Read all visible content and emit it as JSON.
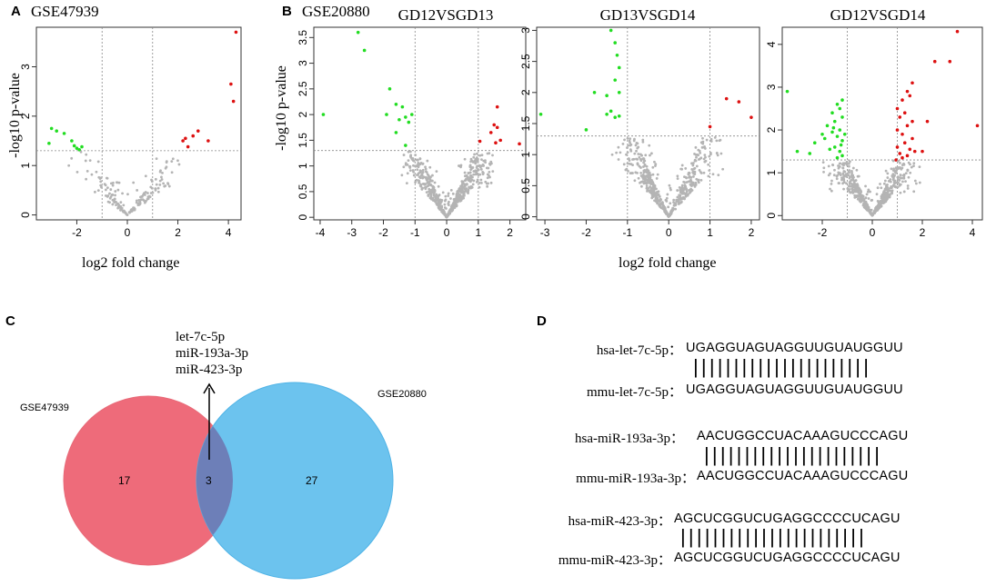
{
  "panels": {
    "A": {
      "letter": "A",
      "title": "GSE47939"
    },
    "B": {
      "letter": "B",
      "title": "GSE20880"
    },
    "C": {
      "letter": "C"
    },
    "D": {
      "letter": "D"
    }
  },
  "axis_labels": {
    "x": "log2 fold change",
    "y": "-log10 p-value"
  },
  "chart_data": [
    {
      "type": "scatter",
      "title": "GSE47939",
      "xlabel": "log2 fold change",
      "ylabel": "-log10 p-value",
      "xlim": [
        -3.6,
        4.5
      ],
      "ylim": [
        -0.1,
        3.8
      ],
      "xticks": [
        -2,
        0,
        2,
        4
      ],
      "yticks": [
        0,
        1,
        2,
        3
      ],
      "vlines": [
        -1,
        1
      ],
      "hline": 1.3,
      "series": [
        {
          "name": "down",
          "color": "#22dd22",
          "points": [
            [
              -3.0,
              1.75
            ],
            [
              -2.8,
              1.7
            ],
            [
              -2.5,
              1.65
            ],
            [
              -2.2,
              1.5
            ],
            [
              -3.1,
              1.45
            ],
            [
              -2.0,
              1.35
            ],
            [
              -1.9,
              1.32
            ],
            [
              -1.8,
              1.38
            ],
            [
              -2.1,
              1.4
            ]
          ]
        },
        {
          "name": "up",
          "color": "#dd1111",
          "points": [
            [
              4.3,
              3.7
            ],
            [
              4.1,
              2.65
            ],
            [
              4.2,
              2.3
            ],
            [
              2.8,
              1.7
            ],
            [
              2.6,
              1.6
            ],
            [
              2.3,
              1.55
            ],
            [
              2.2,
              1.5
            ],
            [
              2.4,
              1.38
            ],
            [
              3.2,
              1.5
            ]
          ]
        },
        {
          "name": "ns",
          "color": "#b4b4b4",
          "vshape": true,
          "xmax": 2.4,
          "count": 170,
          "slope": 0.62,
          "seed": 11
        }
      ]
    },
    {
      "type": "scatter",
      "title": "GD12VSGD13",
      "xlabel": "",
      "ylabel": "-log10 p-value",
      "xlim": [
        -4.2,
        2.5
      ],
      "ylim": [
        -0.05,
        3.7
      ],
      "xticks": [
        -4,
        -3,
        -2,
        -1,
        0,
        1,
        2
      ],
      "yticks": [
        0,
        0.5,
        1,
        1.5,
        2,
        2.5,
        3,
        3.5
      ],
      "vlines": [
        -1,
        1
      ],
      "hline": 1.3,
      "series": [
        {
          "name": "down",
          "color": "#22dd22",
          "points": [
            [
              -2.8,
              3.6
            ],
            [
              -2.6,
              3.25
            ],
            [
              -1.8,
              2.5
            ],
            [
              -1.6,
              2.2
            ],
            [
              -1.4,
              2.15
            ],
            [
              -1.9,
              2.0
            ],
            [
              -1.5,
              1.9
            ],
            [
              -1.3,
              1.95
            ],
            [
              -1.2,
              1.85
            ],
            [
              -1.1,
              2.0
            ],
            [
              -1.6,
              1.65
            ],
            [
              -1.3,
              1.4
            ],
            [
              -3.9,
              2.0
            ]
          ]
        },
        {
          "name": "up",
          "color": "#dd1111",
          "points": [
            [
              1.6,
              2.15
            ],
            [
              1.5,
              1.8
            ],
            [
              1.6,
              1.75
            ],
            [
              1.4,
              1.65
            ],
            [
              1.7,
              1.5
            ],
            [
              1.55,
              1.45
            ],
            [
              1.05,
              1.48
            ],
            [
              2.3,
              1.43
            ]
          ]
        },
        {
          "name": "ns",
          "color": "#b4b4b4",
          "vshape": true,
          "xmax": 1.6,
          "count": 560,
          "slope": 1.25,
          "seed": 23
        }
      ]
    },
    {
      "type": "scatter",
      "title": "GD13VSGD14",
      "xlabel": "",
      "ylabel": "",
      "xlim": [
        -3.2,
        2.2
      ],
      "ylim": [
        -0.05,
        3.05
      ],
      "xticks": [
        -3,
        -2,
        -1,
        0,
        1,
        2
      ],
      "yticks": [
        0,
        0.5,
        1,
        1.5,
        2,
        2.5,
        3
      ],
      "vlines": [
        -1,
        1
      ],
      "hline": 1.3,
      "series": [
        {
          "name": "down",
          "color": "#22dd22",
          "points": [
            [
              -1.4,
              3.0
            ],
            [
              -1.3,
              2.8
            ],
            [
              -1.25,
              2.6
            ],
            [
              -1.2,
              2.4
            ],
            [
              -1.3,
              2.2
            ],
            [
              -1.2,
              2.0
            ],
            [
              -1.8,
              2.0
            ],
            [
              -1.5,
              1.95
            ],
            [
              -1.4,
              1.7
            ],
            [
              -1.5,
              1.65
            ],
            [
              -1.3,
              1.6
            ],
            [
              -1.2,
              1.62
            ],
            [
              -2.0,
              1.4
            ],
            [
              -3.1,
              1.65
            ]
          ]
        },
        {
          "name": "up",
          "color": "#dd1111",
          "points": [
            [
              1.4,
              1.9
            ],
            [
              1.7,
              1.85
            ],
            [
              2.0,
              1.6
            ],
            [
              1.0,
              1.45
            ]
          ]
        },
        {
          "name": "ns",
          "color": "#b4b4b4",
          "vshape": true,
          "xmax": 1.4,
          "count": 520,
          "slope": 1.35,
          "seed": 37
        }
      ]
    },
    {
      "type": "scatter",
      "title": "GD12VSGD14",
      "xlabel": "",
      "ylabel": "",
      "xlim": [
        -3.6,
        4.4
      ],
      "ylim": [
        -0.1,
        4.4
      ],
      "xticks": [
        -2,
        0,
        2,
        4
      ],
      "yticks": [
        0,
        1,
        2,
        3,
        4
      ],
      "vlines": [
        -1,
        1
      ],
      "hline": 1.3,
      "series": [
        {
          "name": "down",
          "color": "#22dd22",
          "points": [
            [
              -3.4,
              2.9
            ],
            [
              -1.2,
              2.7
            ],
            [
              -1.4,
              2.6
            ],
            [
              -1.3,
              2.5
            ],
            [
              -1.6,
              2.4
            ],
            [
              -1.2,
              2.3
            ],
            [
              -1.5,
              2.2
            ],
            [
              -1.8,
              2.1
            ],
            [
              -1.3,
              2.0
            ],
            [
              -1.6,
              1.95
            ],
            [
              -2.0,
              1.9
            ],
            [
              -1.4,
              1.85
            ],
            [
              -1.9,
              1.8
            ],
            [
              -1.2,
              1.75
            ],
            [
              -2.3,
              1.7
            ],
            [
              -1.5,
              1.6
            ],
            [
              -1.7,
              1.55
            ],
            [
              -1.3,
              1.5
            ],
            [
              -2.5,
              1.45
            ],
            [
              -1.2,
              1.4
            ],
            [
              -1.4,
              1.35
            ],
            [
              -3.0,
              1.5
            ],
            [
              -1.1,
              1.9
            ],
            [
              -1.25,
              1.65
            ],
            [
              -1.55,
              2.05
            ]
          ]
        },
        {
          "name": "up",
          "color": "#dd1111",
          "points": [
            [
              3.4,
              4.3
            ],
            [
              2.5,
              3.6
            ],
            [
              3.1,
              3.6
            ],
            [
              1.6,
              3.1
            ],
            [
              1.4,
              2.9
            ],
            [
              1.5,
              2.8
            ],
            [
              1.2,
              2.7
            ],
            [
              1.0,
              2.5
            ],
            [
              1.3,
              2.4
            ],
            [
              1.1,
              2.3
            ],
            [
              1.6,
              2.2
            ],
            [
              2.2,
              2.2
            ],
            [
              1.4,
              2.1
            ],
            [
              1.0,
              2.0
            ],
            [
              1.2,
              1.9
            ],
            [
              1.6,
              1.8
            ],
            [
              1.3,
              1.7
            ],
            [
              1.0,
              1.6
            ],
            [
              1.5,
              1.55
            ],
            [
              1.7,
              1.5
            ],
            [
              1.1,
              1.45
            ],
            [
              1.4,
              1.4
            ],
            [
              2.0,
              1.5
            ],
            [
              4.2,
              2.1
            ],
            [
              1.2,
              1.35
            ],
            [
              0.95,
              1.3
            ]
          ]
        },
        {
          "name": "ns",
          "color": "#b4b4b4",
          "vshape": true,
          "xmax": 2.0,
          "count": 520,
          "slope": 1.1,
          "seed": 53
        }
      ]
    }
  ],
  "venn": {
    "left_label": "GSE47939",
    "right_label": "GSE20880",
    "left_only": "17",
    "overlap": "3",
    "right_only": "27",
    "overlap_mirnas": [
      "let-7c-5p",
      "miR-193a-3p",
      "miR-423-3p"
    ],
    "left_color": "#ee6b7a",
    "right_color": "#6cc3ee",
    "overlap_color": "#6d7fb8"
  },
  "alignments": [
    {
      "human_label": "hsa-let-7c-5p：",
      "human_seq": "UGAGGUAGUAGGUUGUAUGGUU",
      "bars": "||||||||||||||||||||||",
      "mouse_label": "mmu-let-7c-5p：",
      "mouse_seq": "UGAGGUAGUAGGUUGUAUGGUU"
    },
    {
      "human_label": "hsa-miR-193a-3p：",
      "human_seq": "AACUGGCCUACAAAGUCCCAGU",
      "bars": "||||||||||||||||||||||",
      "mouse_label": "mmu-miR-193a-3p：",
      "mouse_seq": "AACUGGCCUACAAAGUCCCAGU"
    },
    {
      "human_label": "hsa-miR-423-3p：",
      "human_seq": "AGCUCGGUCUGAGGCCCCUCAGU",
      "bars": "|||||||||||||||||||||||",
      "mouse_label": "mmu-miR-423-3p：",
      "mouse_seq": "AGCUCGGUCUGAGGCCCCUCAGU"
    }
  ]
}
